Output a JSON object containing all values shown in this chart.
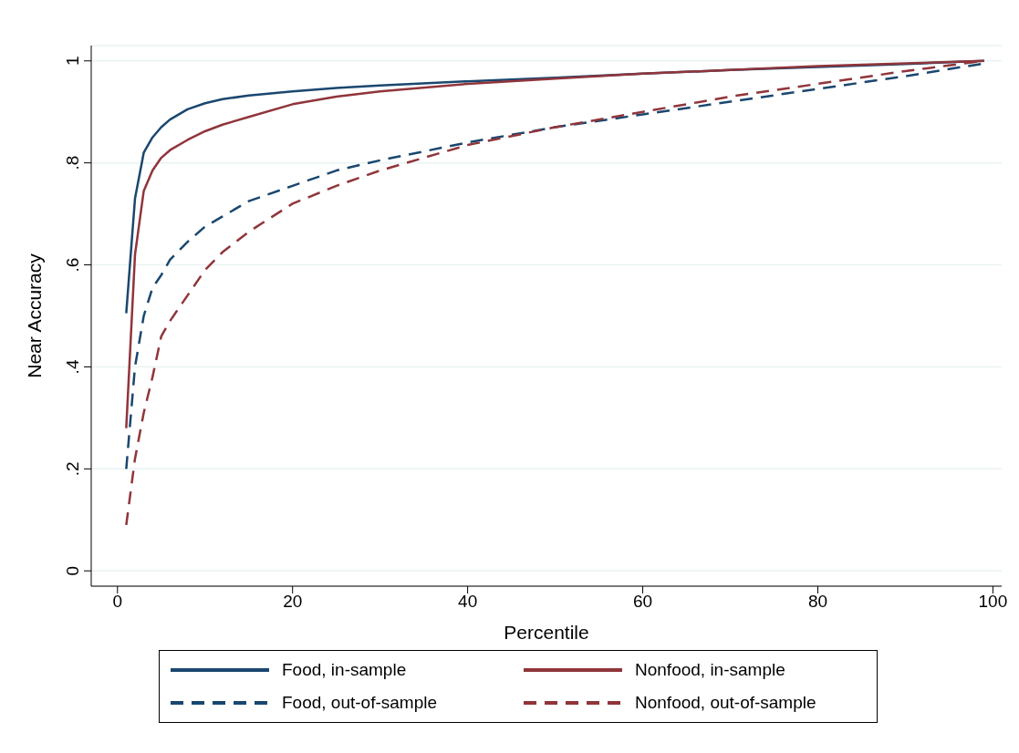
{
  "chart_data": {
    "type": "line",
    "xlabel": "Percentile",
    "ylabel": "Near Accuracy",
    "x": [
      1,
      2,
      3,
      4,
      5,
      6,
      8,
      10,
      12,
      15,
      20,
      25,
      30,
      40,
      50,
      60,
      70,
      80,
      90,
      99
    ],
    "xlim": [
      -3,
      101
    ],
    "xticks": [
      0,
      20,
      40,
      60,
      80,
      100
    ],
    "ylim": [
      -0.03,
      1.03
    ],
    "yticks": [
      {
        "value": 0,
        "label": "0"
      },
      {
        "value": 0.2,
        "label": ".2"
      },
      {
        "value": 0.4,
        "label": ".4"
      },
      {
        "value": 0.6,
        "label": ".6"
      },
      {
        "value": 0.8,
        "label": ".8"
      },
      {
        "value": 1,
        "label": "1"
      }
    ],
    "grid": "y",
    "legend": "bottom",
    "marker": "none",
    "series": [
      {
        "name": "Food, in-sample",
        "color": "#1a476f",
        "line_style": "solid",
        "values": [
          0.505,
          0.73,
          0.82,
          0.85,
          0.87,
          0.885,
          0.905,
          0.917,
          0.925,
          0.932,
          0.94,
          0.947,
          0.952,
          0.96,
          0.967,
          0.975,
          0.982,
          0.988,
          0.994,
          1.0
        ]
      },
      {
        "name": "Nonfood, in-sample",
        "color": "#90353b",
        "line_style": "solid",
        "values": [
          0.28,
          0.62,
          0.745,
          0.785,
          0.81,
          0.825,
          0.845,
          0.862,
          0.875,
          0.89,
          0.915,
          0.93,
          0.94,
          0.955,
          0.965,
          0.975,
          0.982,
          0.99,
          0.995,
          1.0
        ]
      },
      {
        "name": "Food, out-of-sample",
        "color": "#1a476f",
        "line_style": "dashed",
        "values": [
          0.2,
          0.4,
          0.5,
          0.555,
          0.58,
          0.61,
          0.645,
          0.675,
          0.695,
          0.725,
          0.755,
          0.785,
          0.805,
          0.84,
          0.87,
          0.895,
          0.92,
          0.945,
          0.97,
          0.995
        ]
      },
      {
        "name": "Nonfood, out-of-sample",
        "color": "#90353b",
        "line_style": "dashed",
        "values": [
          0.09,
          0.22,
          0.31,
          0.38,
          0.46,
          0.49,
          0.54,
          0.59,
          0.625,
          0.665,
          0.72,
          0.755,
          0.785,
          0.835,
          0.87,
          0.9,
          0.93,
          0.955,
          0.98,
          1.0
        ]
      }
    ]
  }
}
